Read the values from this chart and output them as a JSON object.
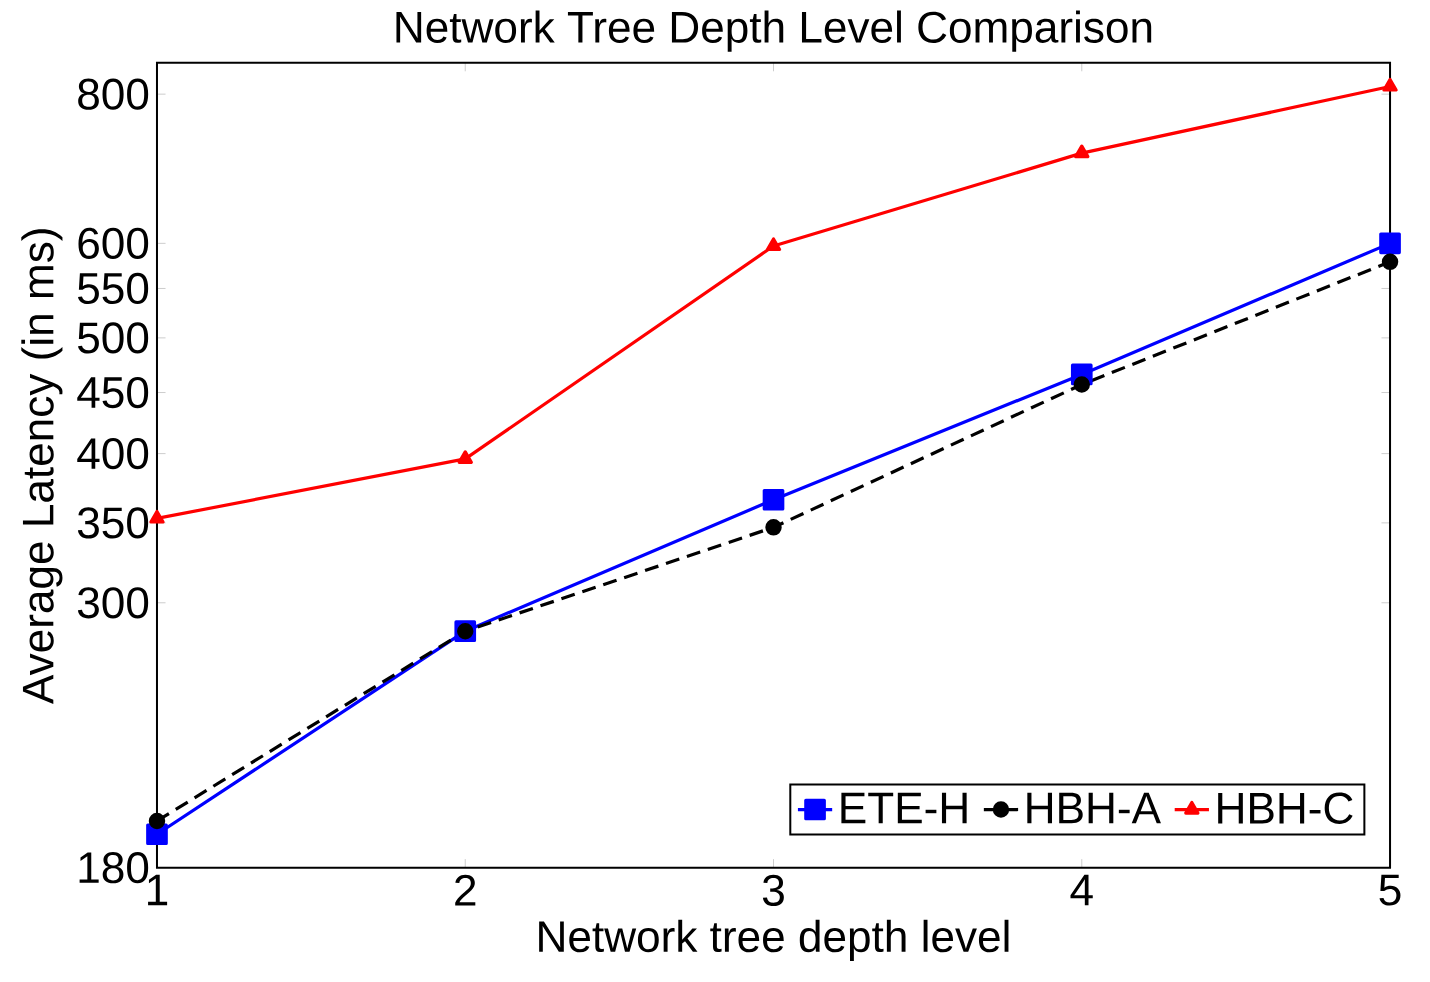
{
  "chart_data": {
    "type": "line",
    "title": "Network Tree  Depth Level Comparison",
    "xlabel": "Network tree depth level",
    "ylabel": "Average Latency (in ms)",
    "x": [
      1,
      2,
      3,
      4,
      5
    ],
    "xlim": [
      1,
      5
    ],
    "xticks": [
      1,
      2,
      3,
      4,
      5
    ],
    "ylim": [
      180,
      850
    ],
    "yticks": [
      180,
      300,
      350,
      400,
      450,
      500,
      550,
      600,
      800
    ],
    "log": "y",
    "grid": false,
    "legend": "bottom right",
    "series": [
      {
        "name": "ETE-H",
        "color": "#0000ff",
        "marker": "square",
        "line_style": "solid",
        "values": [
          192,
          284,
          366,
          466,
          600
        ]
      },
      {
        "name": "HBH-A",
        "color": "#000000",
        "marker": "circle",
        "line_style": "dashed",
        "values": [
          197,
          284,
          347,
          457,
          579
        ]
      },
      {
        "name": "HBH-C",
        "color": "#ff0000",
        "marker": "triangle",
        "line_style": "solid",
        "values": [
          353,
          396,
          597,
          714,
          812
        ]
      }
    ]
  }
}
